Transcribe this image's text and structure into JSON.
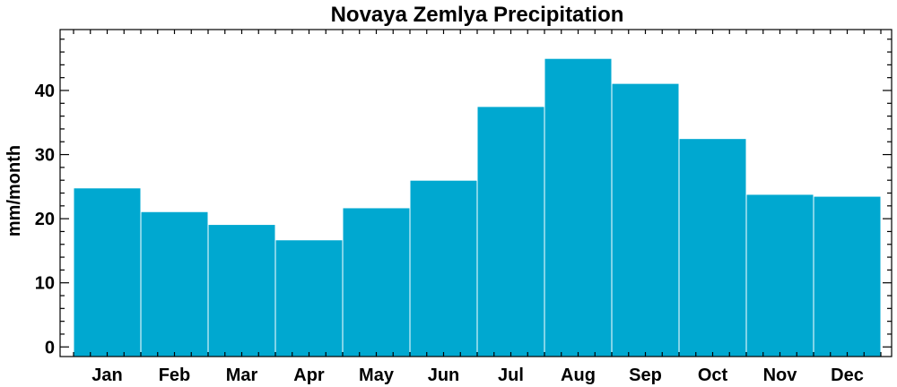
{
  "chart_data": {
    "type": "bar",
    "title": "Novaya Zemlya Precipitation",
    "xlabel": "",
    "ylabel": "mm/month",
    "categories": [
      "Jan",
      "Feb",
      "Mar",
      "Apr",
      "May",
      "Jun",
      "Jul",
      "Aug",
      "Sep",
      "Oct",
      "Nov",
      "Dec"
    ],
    "values": [
      24.8,
      21.1,
      19.1,
      16.7,
      21.7,
      26.0,
      37.5,
      45.0,
      41.1,
      32.5,
      23.8,
      23.5
    ],
    "ylim": [
      -1.5,
      49.5
    ],
    "yticks": [
      "0",
      "10",
      "20",
      "30",
      "40"
    ],
    "bar_color": "#00A8D0",
    "grid": false,
    "legend": "none"
  }
}
